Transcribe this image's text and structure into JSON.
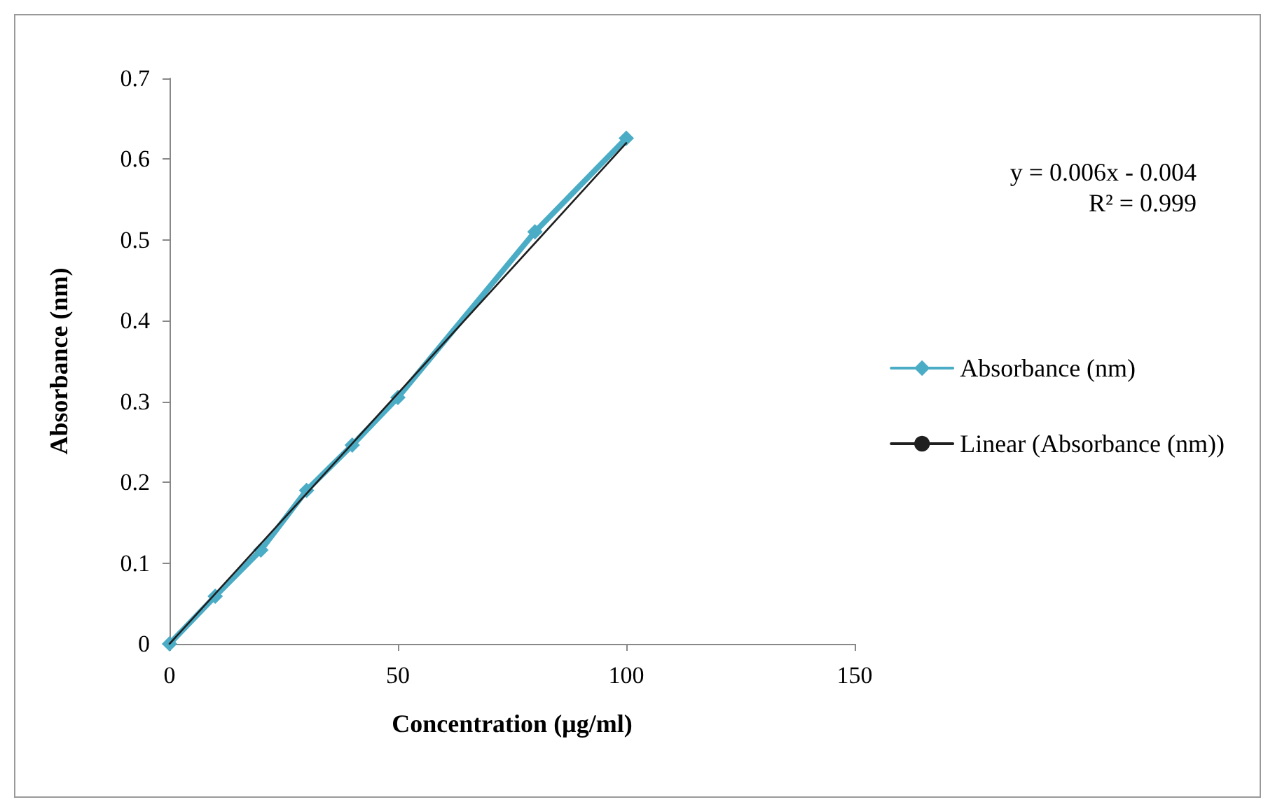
{
  "chart_data": {
    "type": "line",
    "xlabel": "Concentration (µg/ml)",
    "ylabel": "Absorbance (nm)",
    "annotations": [
      "y = 0.006x - 0.004",
      "R² = 0.999"
    ],
    "x": [
      0,
      10,
      20,
      30,
      40,
      50,
      80,
      100
    ],
    "series": [
      {
        "name": "Absorbance (nm)",
        "color": "#4bacc6",
        "values": [
          0,
          0.059,
          0.116,
          0.19,
          0.246,
          0.305,
          0.51,
          0.626
        ]
      },
      {
        "name": "Linear (Absorbance (nm))",
        "type": "line",
        "marker": "none",
        "color": "#1f1f1f",
        "x": [
          0,
          100
        ],
        "values": [
          0,
          0.62
        ]
      }
    ],
    "xlim": [
      0,
      150
    ],
    "xticks": [
      0,
      50,
      100,
      150
    ],
    "ylim": [
      0,
      0.7
    ],
    "yticks": [
      0,
      0.1,
      0.2,
      0.3,
      0.4,
      0.5,
      0.6,
      0.7
    ],
    "grid": false,
    "legend": "right",
    "marker": "diamond",
    "line_style": "solid"
  }
}
